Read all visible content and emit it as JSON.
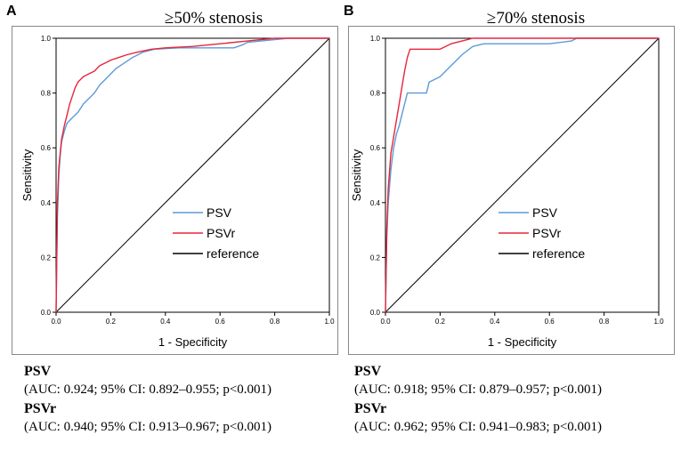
{
  "panels": [
    {
      "letter": "A",
      "title": "≥50% stenosis",
      "stats": [
        {
          "label": "PSV",
          "text": "(AUC: 0.924; 95% CI: 0.892–0.955; p<0.001)"
        },
        {
          "label": "PSVr",
          "text": "(AUC: 0.940; 95% CI: 0.913–0.967; p<0.001)"
        }
      ]
    },
    {
      "letter": "B",
      "title": "≥70% stenosis",
      "stats": [
        {
          "label": "PSV",
          "text": "(AUC: 0.918; 95% CI: 0.879–0.957; p<0.001)"
        },
        {
          "label": "PSVr",
          "text": "(AUC: 0.962; 95% CI: 0.941–0.983; p<0.001)"
        }
      ]
    }
  ],
  "chart_data": [
    {
      "type": "line",
      "title": "≥50% stenosis",
      "xlabel": "1 - Specificity",
      "ylabel": "Sensitivity",
      "xlim": [
        0,
        1
      ],
      "ylim": [
        0,
        1
      ],
      "ticks": [
        "0.0",
        "0.2",
        "0.4",
        "0.6",
        "0.8",
        "1.0"
      ],
      "legend_position": "lower-right",
      "series": [
        {
          "name": "PSV",
          "color": "#5b9bd5",
          "points": [
            [
              0,
              0
            ],
            [
              0.005,
              0.35
            ],
            [
              0.01,
              0.5
            ],
            [
              0.015,
              0.57
            ],
            [
              0.02,
              0.62
            ],
            [
              0.03,
              0.66
            ],
            [
              0.04,
              0.69
            ],
            [
              0.05,
              0.7
            ],
            [
              0.06,
              0.71
            ],
            [
              0.08,
              0.73
            ],
            [
              0.1,
              0.76
            ],
            [
              0.12,
              0.78
            ],
            [
              0.14,
              0.8
            ],
            [
              0.16,
              0.83
            ],
            [
              0.18,
              0.85
            ],
            [
              0.2,
              0.87
            ],
            [
              0.22,
              0.89
            ],
            [
              0.25,
              0.91
            ],
            [
              0.28,
              0.93
            ],
            [
              0.32,
              0.95
            ],
            [
              0.36,
              0.96
            ],
            [
              0.45,
              0.965
            ],
            [
              0.55,
              0.965
            ],
            [
              0.65,
              0.965
            ],
            [
              0.68,
              0.975
            ],
            [
              0.7,
              0.985
            ],
            [
              0.75,
              0.99
            ],
            [
              0.8,
              0.995
            ],
            [
              0.85,
              1
            ],
            [
              1,
              1
            ]
          ]
        },
        {
          "name": "PSVr",
          "color": "#e8253c",
          "points": [
            [
              0,
              0
            ],
            [
              0.005,
              0.4
            ],
            [
              0.01,
              0.53
            ],
            [
              0.015,
              0.58
            ],
            [
              0.02,
              0.63
            ],
            [
              0.03,
              0.68
            ],
            [
              0.04,
              0.72
            ],
            [
              0.05,
              0.76
            ],
            [
              0.06,
              0.79
            ],
            [
              0.07,
              0.82
            ],
            [
              0.08,
              0.84
            ],
            [
              0.1,
              0.86
            ],
            [
              0.12,
              0.87
            ],
            [
              0.14,
              0.88
            ],
            [
              0.16,
              0.9
            ],
            [
              0.18,
              0.91
            ],
            [
              0.2,
              0.92
            ],
            [
              0.23,
              0.93
            ],
            [
              0.26,
              0.94
            ],
            [
              0.3,
              0.95
            ],
            [
              0.35,
              0.96
            ],
            [
              0.4,
              0.965
            ],
            [
              0.5,
              0.97
            ],
            [
              0.6,
              0.98
            ],
            [
              0.7,
              0.99
            ],
            [
              0.8,
              1
            ],
            [
              1,
              1
            ]
          ]
        },
        {
          "name": "reference",
          "color": "#000000",
          "points": [
            [
              0,
              0
            ],
            [
              1,
              1
            ]
          ]
        }
      ]
    },
    {
      "type": "line",
      "title": "≥70% stenosis",
      "xlabel": "1 - Specificity",
      "ylabel": "Sensitivity",
      "xlim": [
        0,
        1
      ],
      "ylim": [
        0,
        1
      ],
      "ticks": [
        "0.0",
        "0.2",
        "0.4",
        "0.6",
        "0.8",
        "1.0"
      ],
      "legend_position": "lower-right",
      "series": [
        {
          "name": "PSV",
          "color": "#5b9bd5",
          "points": [
            [
              0,
              0
            ],
            [
              0.005,
              0.27
            ],
            [
              0.01,
              0.4
            ],
            [
              0.02,
              0.52
            ],
            [
              0.03,
              0.6
            ],
            [
              0.04,
              0.65
            ],
            [
              0.05,
              0.68
            ],
            [
              0.06,
              0.72
            ],
            [
              0.07,
              0.76
            ],
            [
              0.08,
              0.8
            ],
            [
              0.12,
              0.8
            ],
            [
              0.15,
              0.8
            ],
            [
              0.16,
              0.84
            ],
            [
              0.18,
              0.85
            ],
            [
              0.2,
              0.86
            ],
            [
              0.22,
              0.88
            ],
            [
              0.25,
              0.91
            ],
            [
              0.28,
              0.94
            ],
            [
              0.32,
              0.97
            ],
            [
              0.36,
              0.98
            ],
            [
              0.5,
              0.98
            ],
            [
              0.6,
              0.98
            ],
            [
              0.68,
              0.99
            ],
            [
              0.7,
              1
            ],
            [
              1,
              1
            ]
          ]
        },
        {
          "name": "PSVr",
          "color": "#e8253c",
          "points": [
            [
              0,
              0
            ],
            [
              0.005,
              0.3
            ],
            [
              0.01,
              0.45
            ],
            [
              0.02,
              0.58
            ],
            [
              0.03,
              0.64
            ],
            [
              0.04,
              0.7
            ],
            [
              0.05,
              0.76
            ],
            [
              0.06,
              0.82
            ],
            [
              0.07,
              0.88
            ],
            [
              0.08,
              0.93
            ],
            [
              0.09,
              0.96
            ],
            [
              0.2,
              0.96
            ],
            [
              0.22,
              0.97
            ],
            [
              0.24,
              0.98
            ],
            [
              0.28,
              0.99
            ],
            [
              0.32,
              1
            ],
            [
              1,
              1
            ]
          ]
        },
        {
          "name": "reference",
          "color": "#000000",
          "points": [
            [
              0,
              0
            ],
            [
              1,
              1
            ]
          ]
        }
      ]
    }
  ]
}
